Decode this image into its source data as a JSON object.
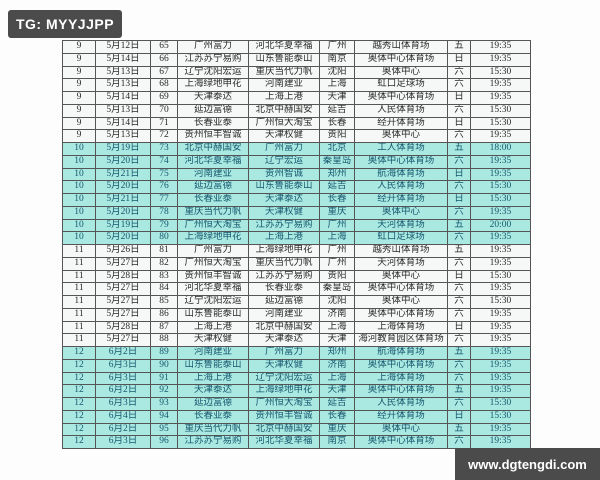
{
  "watermarks": {
    "top_left": "TG: MYYJJPP",
    "bottom_right": "www.dgtengdi.com"
  },
  "colors": {
    "highlight_row_bg": "#a9e9e2",
    "normal_row_bg": "#f5f8f6",
    "highlight_text": "#17586e",
    "normal_text": "#2b2b2b",
    "grid_border": "#555555",
    "badge_bg": "#4b4b4b",
    "badge_text": "#ffffff"
  },
  "table": {
    "columns": [
      "round",
      "date",
      "no",
      "home",
      "away",
      "city",
      "venue",
      "day",
      "time"
    ],
    "rows": [
      {
        "round": "9",
        "date": "5月12日",
        "no": "65",
        "home": "广州富力",
        "away": "河北华夏幸福",
        "city": "广州",
        "venue": "越秀山体育场",
        "day": "五",
        "time": "19:35"
      },
      {
        "round": "9",
        "date": "5月14日",
        "no": "66",
        "home": "江苏苏宁易购",
        "away": "山东鲁能泰山",
        "city": "南京",
        "venue": "奥体中心体育场",
        "day": "日",
        "time": "19:35"
      },
      {
        "round": "9",
        "date": "5月13日",
        "no": "67",
        "home": "辽宁沈阳宏运",
        "away": "重庆当代力帆",
        "city": "沈阳",
        "venue": "奥体中心",
        "day": "六",
        "time": "15:30"
      },
      {
        "round": "9",
        "date": "5月13日",
        "no": "68",
        "home": "上海绿地申花",
        "away": "河南建业",
        "city": "上海",
        "venue": "虹口足球场",
        "day": "六",
        "time": "19:35"
      },
      {
        "round": "9",
        "date": "5月14日",
        "no": "69",
        "home": "天津泰达",
        "away": "上海上港",
        "city": "天津",
        "venue": "奥体中心体育场",
        "day": "日",
        "time": "19:35"
      },
      {
        "round": "9",
        "date": "5月13日",
        "no": "70",
        "home": "延边富德",
        "away": "北京中赫国安",
        "city": "延吉",
        "venue": "人民体育场",
        "day": "六",
        "time": "15:30"
      },
      {
        "round": "9",
        "date": "5月14日",
        "no": "71",
        "home": "长春亚泰",
        "away": "广州恒大淘宝",
        "city": "长春",
        "venue": "经开体育场",
        "day": "日",
        "time": "15:30"
      },
      {
        "round": "9",
        "date": "5月13日",
        "no": "72",
        "home": "贵州恒丰智诚",
        "away": "天津权健",
        "city": "贵阳",
        "venue": "奥体中心",
        "day": "六",
        "time": "19:35"
      },
      {
        "round": "10",
        "date": "5月19日",
        "no": "73",
        "home": "北京中赫国安",
        "away": "广州富力",
        "city": "北京",
        "venue": "工人体育场",
        "day": "五",
        "time": "18:00"
      },
      {
        "round": "10",
        "date": "5月20日",
        "no": "74",
        "home": "河北华夏幸福",
        "away": "辽宁宏运",
        "city": "秦皇岛",
        "venue": "奥体中心体育场",
        "day": "六",
        "time": "19:35"
      },
      {
        "round": "10",
        "date": "5月21日",
        "no": "75",
        "home": "河南建业",
        "away": "贵州智诚",
        "city": "郑州",
        "venue": "航海体育场",
        "day": "日",
        "time": "19:35"
      },
      {
        "round": "10",
        "date": "5月20日",
        "no": "76",
        "home": "延边富德",
        "away": "山东鲁能泰山",
        "city": "延吉",
        "venue": "人民体育场",
        "day": "六",
        "time": "15:30"
      },
      {
        "round": "10",
        "date": "5月21日",
        "no": "77",
        "home": "长春亚泰",
        "away": "天津泰达",
        "city": "长春",
        "venue": "经开体育场",
        "day": "日",
        "time": "15:30"
      },
      {
        "round": "10",
        "date": "5月20日",
        "no": "78",
        "home": "重庆当代力帆",
        "away": "天津权健",
        "city": "重庆",
        "venue": "奥体中心",
        "day": "六",
        "time": "19:35"
      },
      {
        "round": "10",
        "date": "5月19日",
        "no": "79",
        "home": "广州恒大淘宝",
        "away": "江苏苏宁易购",
        "city": "广州",
        "venue": "天河体育场",
        "day": "五",
        "time": "20:00"
      },
      {
        "round": "10",
        "date": "5月20日",
        "no": "80",
        "home": "上海绿地申花",
        "away": "上海上港",
        "city": "上海",
        "venue": "虹口足球场",
        "day": "六",
        "time": "19:35"
      },
      {
        "round": "11",
        "date": "5月26日",
        "no": "81",
        "home": "广州富力",
        "away": "上海绿地申花",
        "city": "广州",
        "venue": "越秀山体育场",
        "day": "五",
        "time": "19:35"
      },
      {
        "round": "11",
        "date": "5月27日",
        "no": "82",
        "home": "广州恒大淘宝",
        "away": "重庆当代力帆",
        "city": "广州",
        "venue": "天河体育场",
        "day": "六",
        "time": "19:35"
      },
      {
        "round": "11",
        "date": "5月28日",
        "no": "83",
        "home": "贵州恒丰智诚",
        "away": "江苏苏宁易购",
        "city": "贵阳",
        "venue": "奥体中心",
        "day": "日",
        "time": "15:30"
      },
      {
        "round": "11",
        "date": "5月27日",
        "no": "84",
        "home": "河北华夏幸福",
        "away": "长春亚泰",
        "city": "秦皇岛",
        "venue": "奥体中心体育场",
        "day": "六",
        "time": "19:35"
      },
      {
        "round": "11",
        "date": "5月27日",
        "no": "85",
        "home": "辽宁沈阳宏运",
        "away": "延边富德",
        "city": "沈阳",
        "venue": "奥体中心",
        "day": "六",
        "time": "15:30"
      },
      {
        "round": "11",
        "date": "5月27日",
        "no": "86",
        "home": "山东鲁能泰山",
        "away": "河南建业",
        "city": "济南",
        "venue": "奥体中心体育场",
        "day": "六",
        "time": "19:35"
      },
      {
        "round": "11",
        "date": "5月28日",
        "no": "87",
        "home": "上海上港",
        "away": "北京中赫国安",
        "city": "上海",
        "venue": "上海体育场",
        "day": "日",
        "time": "19:35"
      },
      {
        "round": "11",
        "date": "5月27日",
        "no": "88",
        "home": "天津权健",
        "away": "天津泰达",
        "city": "天津",
        "venue": "海河教育园区体育场",
        "day": "六",
        "time": "19:35"
      },
      {
        "round": "12",
        "date": "6月2日",
        "no": "89",
        "home": "河南建业",
        "away": "广州富力",
        "city": "郑州",
        "venue": "航海体育场",
        "day": "五",
        "time": "19:35"
      },
      {
        "round": "12",
        "date": "6月3日",
        "no": "90",
        "home": "山东鲁能泰山",
        "away": "天津权健",
        "city": "济南",
        "venue": "奥体中心体育场",
        "day": "六",
        "time": "19:35"
      },
      {
        "round": "12",
        "date": "6月3日",
        "no": "91",
        "home": "上海上港",
        "away": "辽宁沈阳宏运",
        "city": "上海",
        "venue": "上海体育场",
        "day": "六",
        "time": "19:35"
      },
      {
        "round": "12",
        "date": "6月2日",
        "no": "92",
        "home": "天津泰达",
        "away": "上海绿地申花",
        "city": "天津",
        "venue": "奥体中心体育场",
        "day": "五",
        "time": "19:35"
      },
      {
        "round": "12",
        "date": "6月3日",
        "no": "93",
        "home": "延边富德",
        "away": "广州恒大淘宝",
        "city": "延吉",
        "venue": "人民体育场",
        "day": "六",
        "time": "15:30"
      },
      {
        "round": "12",
        "date": "6月4日",
        "no": "94",
        "home": "长春亚泰",
        "away": "贵州恒丰智诚",
        "city": "长春",
        "venue": "经开体育场",
        "day": "日",
        "time": "15:30"
      },
      {
        "round": "12",
        "date": "6月2日",
        "no": "95",
        "home": "重庆当代力帆",
        "away": "北京中赫国安",
        "city": "重庆",
        "venue": "奥体中心",
        "day": "五",
        "time": "19:35"
      },
      {
        "round": "12",
        "date": "6月3日",
        "no": "96",
        "home": "江苏苏宁易购",
        "away": "河北华夏幸福",
        "city": "南京",
        "venue": "奥体中心体育场",
        "day": "六",
        "time": "19:35"
      }
    ]
  }
}
